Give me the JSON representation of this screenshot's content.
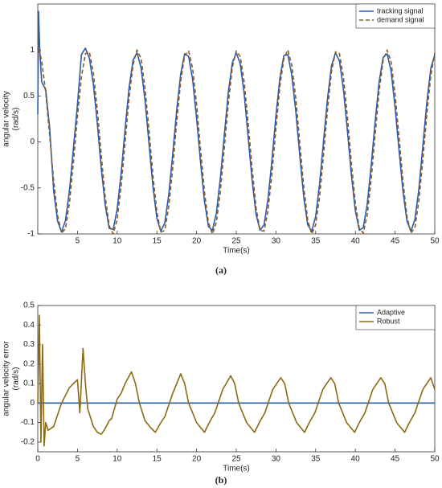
{
  "chart_data": [
    {
      "type": "line",
      "caption": "(a)",
      "xlabel": "Time(s)",
      "ylabel": [
        "angular velocity",
        "(rad/s)"
      ],
      "legend": "northeast",
      "xlim": [
        0,
        50
      ],
      "xticks": [
        5,
        10,
        15,
        20,
        25,
        30,
        35,
        40,
        45,
        50
      ],
      "ylim": [
        -1,
        1.5
      ],
      "yticks": [
        -1,
        -0.5,
        0,
        0.5,
        1
      ],
      "x": [
        0,
        0.1,
        0.25,
        0.5,
        1,
        1.5,
        2,
        2.5,
        3,
        3.5,
        4,
        4.5,
        5,
        5.5,
        6,
        6.5,
        7,
        7.5,
        8,
        8.5,
        9,
        9.5,
        10,
        10.5,
        11,
        11.5,
        12,
        12.5,
        13,
        13.5,
        14,
        14.5,
        15,
        15.5,
        16,
        16.5,
        17,
        17.5,
        18,
        18.5,
        19,
        19.5,
        20,
        20.5,
        21,
        21.5,
        22,
        22.5,
        23,
        23.5,
        24,
        24.5,
        25,
        25.5,
        26,
        26.5,
        27,
        27.5,
        28,
        28.5,
        29,
        29.5,
        30,
        30.5,
        31,
        31.5,
        32,
        32.5,
        33,
        33.5,
        34,
        34.5,
        35,
        35.5,
        36,
        36.5,
        37,
        37.5,
        38,
        38.5,
        39,
        39.5,
        40,
        40.5,
        41,
        41.5,
        42,
        42.5,
        43,
        43.5,
        44,
        44.5,
        45,
        45.5,
        46,
        46.5,
        47,
        47.5,
        48,
        48.5,
        49,
        49.5,
        50
      ],
      "series": [
        {
          "name": "tracking signal",
          "color": "#2a5caa",
          "style": "solid",
          "values": [
            0.3,
            1.42,
            1.0,
            0.65,
            0.57,
            0.15,
            -0.53,
            -0.86,
            -0.98,
            -0.85,
            -0.52,
            -0.06,
            0.41,
            0.95,
            1.02,
            0.91,
            0.63,
            0.2,
            -0.29,
            -0.69,
            -0.94,
            -0.95,
            -0.73,
            -0.34,
            0.14,
            0.59,
            0.89,
            0.97,
            0.81,
            0.46,
            -0.01,
            -0.48,
            -0.83,
            -0.97,
            -0.88,
            -0.57,
            -0.13,
            0.35,
            0.74,
            0.96,
            0.93,
            0.68,
            0.26,
            -0.22,
            -0.65,
            -0.92,
            -0.96,
            -0.77,
            -0.39,
            0.08,
            0.54,
            0.86,
            0.97,
            0.85,
            0.52,
            0.05,
            -0.42,
            -0.79,
            -0.96,
            -0.9,
            -0.62,
            -0.19,
            0.29,
            0.7,
            0.94,
            0.95,
            0.72,
            0.33,
            -0.15,
            -0.6,
            -0.9,
            -0.97,
            -0.81,
            -0.45,
            0.02,
            0.48,
            0.83,
            0.97,
            0.88,
            0.57,
            0.12,
            -0.36,
            -0.75,
            -0.96,
            -0.93,
            -0.67,
            -0.25,
            0.23,
            0.66,
            0.92,
            0.96,
            0.77,
            0.38,
            -0.09,
            -0.54,
            -0.86,
            -0.97,
            -0.84,
            -0.51,
            -0.04,
            0.43,
            0.8,
            0.95
          ]
        },
        {
          "name": "demand signal",
          "color": "#8a5a22",
          "style": "dashed",
          "values": [
            1,
            1.0,
            0.97,
            0.88,
            0.54,
            0.07,
            -0.42,
            -0.8,
            -0.99,
            -0.94,
            -0.65,
            -0.21,
            0.28,
            0.71,
            0.96,
            0.98,
            0.75,
            0.35,
            -0.15,
            -0.6,
            -0.91,
            -1.0,
            -0.84,
            -0.48,
            0,
            0.48,
            0.84,
            1.0,
            0.91,
            0.59,
            0.14,
            -0.36,
            -0.76,
            -0.98,
            -0.96,
            -0.7,
            -0.28,
            0.22,
            0.66,
            0.94,
            0.99,
            0.8,
            0.41,
            -0.08,
            -0.55,
            -0.88,
            -1.0,
            -0.87,
            -0.53,
            -0.06,
            0.42,
            0.81,
            0.99,
            0.93,
            0.65,
            0.2,
            -0.29,
            -0.72,
            -0.96,
            -0.97,
            -0.74,
            -0.34,
            0.15,
            0.61,
            0.91,
            1.0,
            0.83,
            0.47,
            -0.01,
            -0.49,
            -0.85,
            -1.0,
            -0.9,
            -0.59,
            -0.13,
            0.36,
            0.77,
            0.98,
            0.96,
            0.7,
            0.27,
            -0.23,
            -0.67,
            -0.94,
            -0.99,
            -0.79,
            -0.4,
            0.09,
            0.56,
            0.89,
            1.0,
            0.87,
            0.52,
            0.05,
            -0.43,
            -0.81,
            -0.99,
            -0.93,
            -0.64,
            -0.19,
            0.3,
            0.72,
            0.97
          ]
        }
      ]
    },
    {
      "type": "line",
      "caption": "(b)",
      "xlabel": "Time(s)",
      "ylabel": [
        "angular velocity error",
        "(rad/s)"
      ],
      "legend": "northeast",
      "xlim": [
        0,
        50
      ],
      "xticks": [
        0,
        5,
        10,
        15,
        20,
        25,
        30,
        35,
        40,
        45,
        50
      ],
      "ylim": [
        -0.25,
        0.5
      ],
      "yticks": [
        -0.2,
        -0.1,
        0,
        0.1,
        0.2,
        0.3,
        0.4,
        0.5
      ],
      "x": [
        0,
        0.2,
        0.4,
        0.6,
        0.8,
        1,
        1.3,
        2,
        3,
        4,
        5,
        5.3,
        5.7,
        6,
        6.3,
        7,
        7.5,
        8,
        8.5,
        9,
        9.3,
        10,
        10.5,
        11,
        11.8,
        12.3,
        12.8,
        13.5,
        14.3,
        14.8,
        15.5,
        16,
        17,
        18,
        18.5,
        19,
        20,
        21,
        21.6,
        22.3,
        23.3,
        24.3,
        24.8,
        25.3,
        26.3,
        27.3,
        27.9,
        28.6,
        29.6,
        30.6,
        31.1,
        31.6,
        32.6,
        33.6,
        34.2,
        34.9,
        35.9,
        36.9,
        37.4,
        37.9,
        38.9,
        39.9,
        40.5,
        41.2,
        42.2,
        43.2,
        43.7,
        44.2,
        45.2,
        46.2,
        46.8,
        47.5,
        48.5,
        49.5,
        50
      ],
      "series": [
        {
          "name": "Adaptive",
          "color": "#2a5caa",
          "style": "solid",
          "values": [
            0,
            0,
            0,
            0,
            0,
            0,
            0,
            0,
            0,
            0,
            0,
            0,
            0,
            0,
            0,
            0,
            0,
            0,
            0,
            0,
            0,
            0,
            0,
            0,
            0,
            0,
            0,
            0,
            0,
            0,
            0,
            0,
            0,
            0,
            0,
            0,
            0,
            0,
            0,
            0,
            0,
            0,
            0,
            0,
            0,
            0,
            0,
            0,
            0,
            0,
            0,
            0,
            0,
            0,
            0,
            0,
            0,
            0,
            0,
            0,
            0,
            0,
            0,
            0,
            0,
            0,
            0,
            0,
            0,
            0,
            0,
            0,
            0,
            0,
            0
          ]
        },
        {
          "name": "Robust",
          "color": "#8a6a12",
          "style": "solid",
          "values": [
            0,
            0.45,
            -0.2,
            0.3,
            -0.22,
            -0.1,
            -0.14,
            -0.12,
            0,
            0.08,
            0.12,
            -0.05,
            0.28,
            0.1,
            -0.03,
            -0.12,
            -0.15,
            -0.16,
            -0.13,
            -0.09,
            -0.08,
            0.02,
            0.05,
            0.1,
            0.16,
            0.1,
            0.0,
            -0.09,
            -0.13,
            -0.15,
            -0.1,
            -0.07,
            0.05,
            0.15,
            0.1,
            0.0,
            -0.1,
            -0.15,
            -0.1,
            -0.05,
            0.07,
            0.14,
            0.1,
            0.0,
            -0.1,
            -0.15,
            -0.1,
            -0.05,
            0.07,
            0.13,
            0.1,
            0.0,
            -0.1,
            -0.15,
            -0.1,
            -0.05,
            0.07,
            0.13,
            0.1,
            0.0,
            -0.1,
            -0.15,
            -0.1,
            -0.05,
            0.07,
            0.13,
            0.1,
            0.0,
            -0.1,
            -0.15,
            -0.1,
            -0.05,
            0.07,
            0.13,
            0.07
          ]
        }
      ]
    }
  ]
}
